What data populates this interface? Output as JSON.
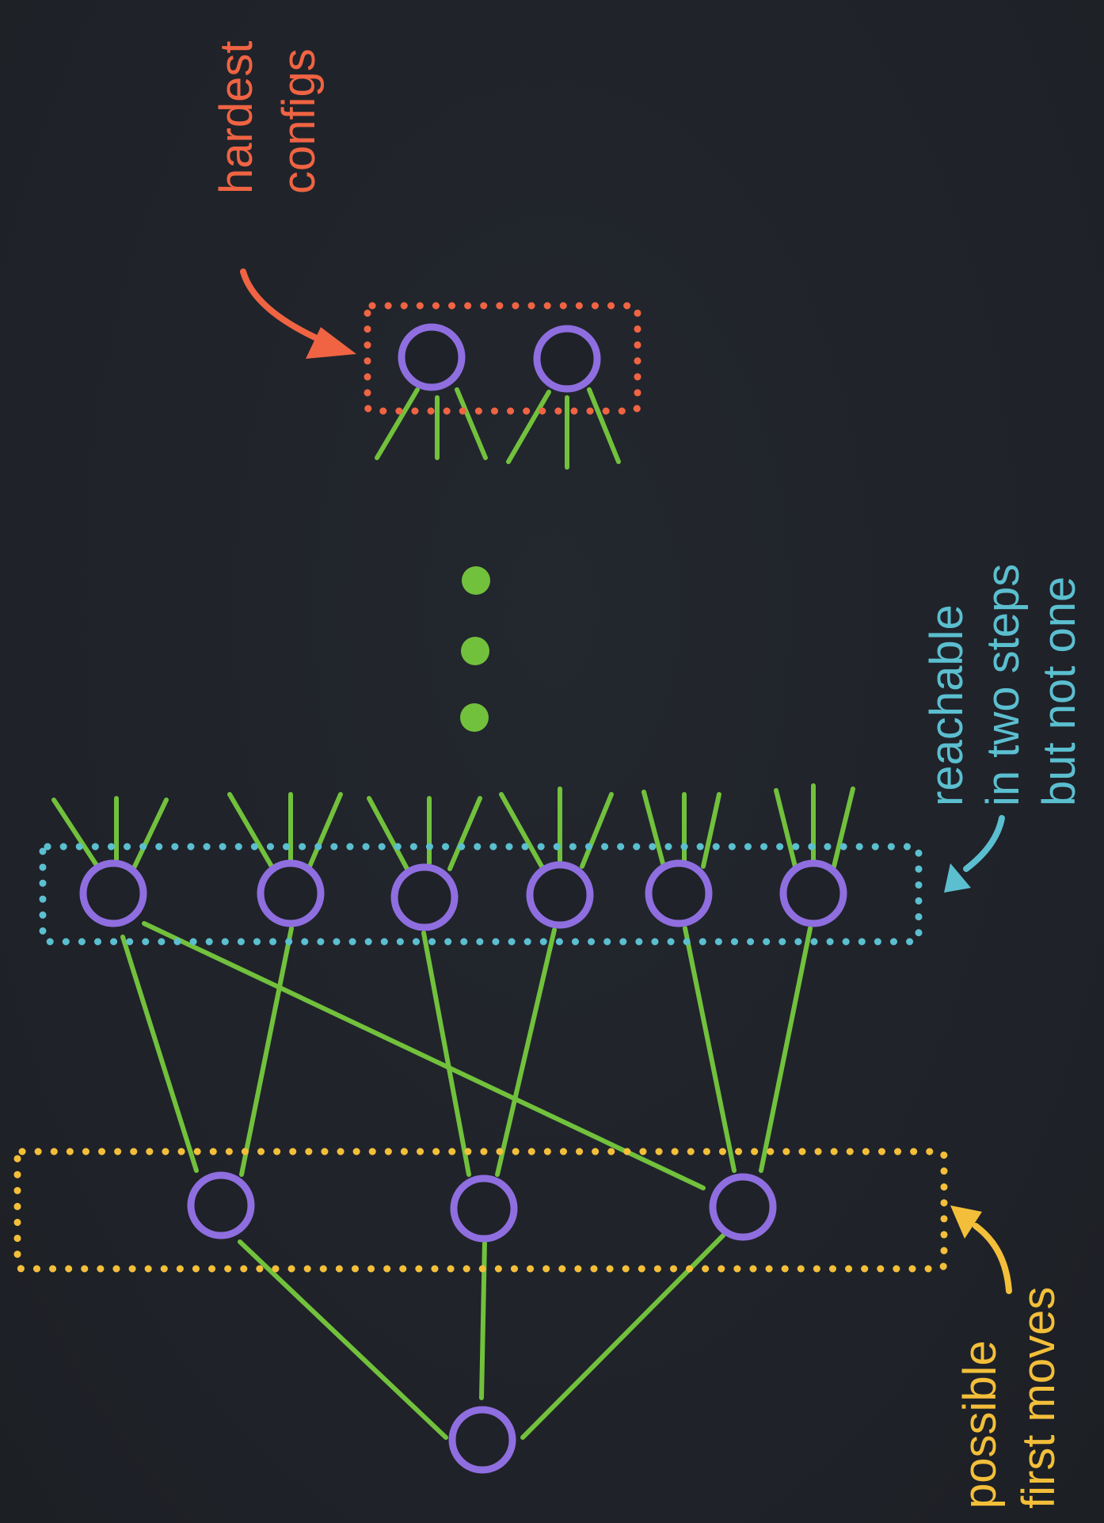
{
  "colors": {
    "background": "#1f2228",
    "node": "#8f6ee0",
    "edge": "#72c13d",
    "hardest": "#f06443",
    "two_steps": "#5bbfd0",
    "first_moves": "#f3bf3a",
    "ellipsis": "#72c13d"
  },
  "labels": {
    "hardest": [
      "hardest",
      "configs"
    ],
    "two_steps": [
      "reachable",
      "in two steps",
      "but not one"
    ],
    "first_moves": [
      "possible",
      "first moves"
    ]
  },
  "groups": [
    {
      "id": "hardest-configs",
      "color_key": "hardest"
    },
    {
      "id": "two-steps",
      "color_key": "two_steps"
    },
    {
      "id": "first-moves",
      "color_key": "first_moves"
    }
  ],
  "ellipsis": {
    "count": 3
  }
}
